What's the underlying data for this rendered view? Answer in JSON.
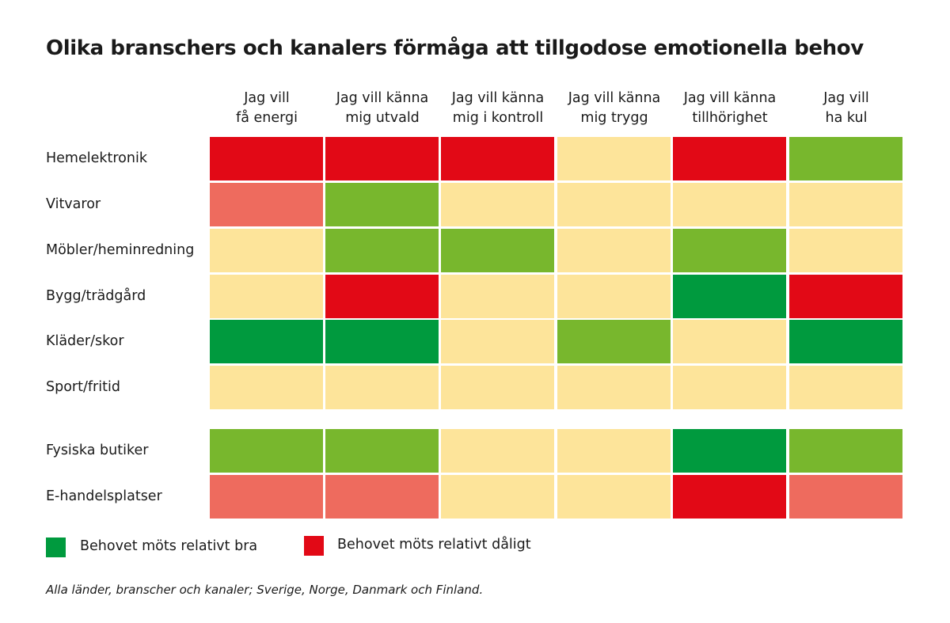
{
  "chart_data": {
    "type": "heatmap",
    "title": "Olika branschers och kanalers förmåga att tillgodose emotionella behov",
    "columns": [
      "Jag vill\nfå energi",
      "Jag vill känna\nmig utvald",
      "Jag vill känna\nmig i kontroll",
      "Jag vill känna\nmig trygg",
      "Jag vill känna\ntillhörighet",
      "Jag vill\nha kul"
    ],
    "groups": [
      {
        "rows": [
          {
            "label": "Hemelektronik",
            "values": [
              -2,
              -2,
              -2,
              0,
              -2,
              1
            ]
          },
          {
            "label": "Vitvaror",
            "values": [
              -1,
              1,
              0,
              0,
              0,
              0
            ]
          },
          {
            "label": "Möbler/heminredning",
            "values": [
              0,
              1,
              1,
              0,
              1,
              0
            ]
          },
          {
            "label": "Bygg/trädgård",
            "values": [
              0,
              -2,
              0,
              0,
              2,
              -2
            ]
          },
          {
            "label": "Kläder/skor",
            "values": [
              2,
              2,
              0,
              1,
              0,
              2
            ]
          },
          {
            "label": "Sport/fritid",
            "values": [
              0,
              0,
              0,
              0,
              0,
              0
            ]
          }
        ]
      },
      {
        "rows": [
          {
            "label": "Fysiska butiker",
            "values": [
              1,
              1,
              0,
              0,
              2,
              1
            ]
          },
          {
            "label": "E-handelsplatser",
            "values": [
              -1,
              -1,
              0,
              0,
              -2,
              -1
            ]
          }
        ]
      }
    ],
    "scale": {
      "2": "#009a3e",
      "1": "#78b72d",
      "0": "#fde49a",
      "-1": "#ee6b5e",
      "-2": "#e20916"
    },
    "legend": [
      {
        "label": "Behovet möts relativt bra",
        "color": "#009a3e"
      },
      {
        "label": "Behovet möts relativt dåligt",
        "color": "#e20916"
      }
    ],
    "note": "Alla länder, branscher och kanaler; Sverige, Norge, Danmark och Finland."
  }
}
